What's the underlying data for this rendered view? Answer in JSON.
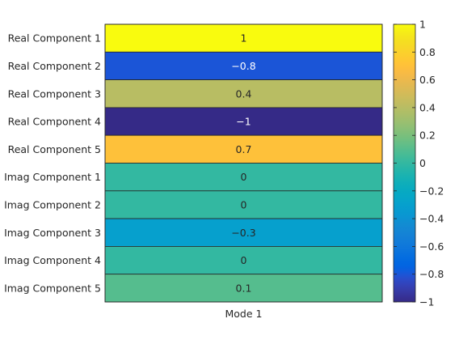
{
  "chart_data": {
    "type": "heatmap",
    "x_categories": [
      "Mode 1"
    ],
    "y_categories": [
      "Real Component 1",
      "Real Component 2",
      "Real Component 3",
      "Real Component 4",
      "Real Component 5",
      "Imag Component 1",
      "Imag Component 2",
      "Imag Component 3",
      "Imag Component 4",
      "Imag Component 5"
    ],
    "values": [
      1,
      -0.8,
      0.4,
      -1,
      0.7,
      0,
      0,
      -0.3,
      0,
      0.1
    ],
    "value_labels": [
      "1",
      "−0.8",
      "0.4",
      "−1",
      "0.7",
      "0",
      "0",
      "−0.3",
      "0",
      "0.1"
    ],
    "colormap": "parula",
    "clim": [
      -1,
      1
    ],
    "colorbar": {
      "ticks": [
        1,
        0.8,
        0.6,
        0.4,
        0.2,
        0,
        -0.2,
        -0.4,
        -0.6,
        -0.8,
        -1
      ],
      "tick_labels": [
        "1",
        "0.8",
        "0.6",
        "0.4",
        "0.2",
        "0",
        "−0.2",
        "−0.4",
        "−0.6",
        "−0.8",
        "−1"
      ]
    },
    "grid": true,
    "colorbar_placement": "right"
  }
}
